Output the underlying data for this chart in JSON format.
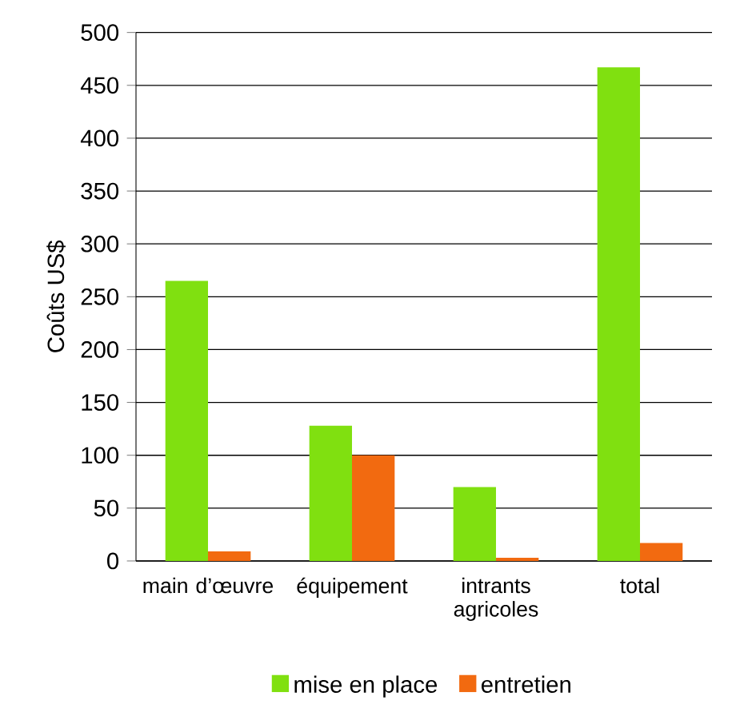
{
  "chart_data": {
    "type": "bar",
    "ylabel": "Coûts US$",
    "categories": [
      "main d’œuvre",
      "équipement",
      "intrants agricoles",
      "total"
    ],
    "series": [
      {
        "name": "mise en place",
        "color": "#80e010",
        "values": [
          265,
          128,
          70,
          467
        ]
      },
      {
        "name": "entretien",
        "color": "#f26a10",
        "values": [
          9,
          100,
          3,
          17
        ]
      }
    ],
    "ylim": [
      0,
      500
    ],
    "yticks": [
      0,
      50,
      100,
      150,
      200,
      250,
      300,
      350,
      400,
      450,
      500
    ],
    "grid": "y",
    "legend": "bottom"
  }
}
